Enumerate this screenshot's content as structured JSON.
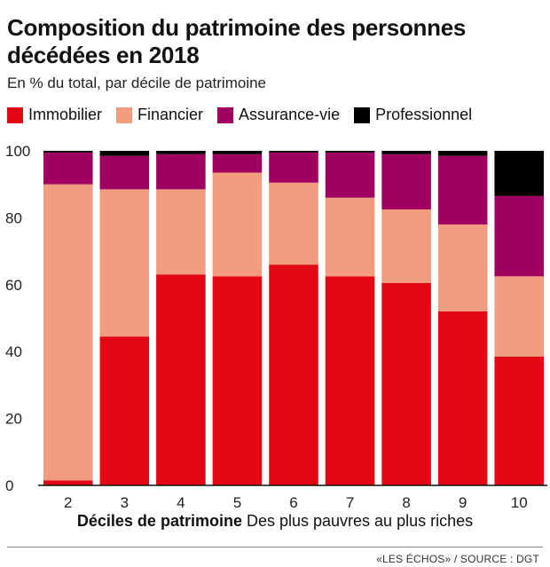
{
  "title": "Composition du patrimoine des personnes décédées en 2018",
  "subtitle": "En % du total, par décile de patrimoine",
  "source": "«LES ÉCHOS» / SOURCE : DGT",
  "xcaption": {
    "bold": "Déciles de patrimoine",
    "rest": " Des plus pauvres au plus riches"
  },
  "chart_data": {
    "type": "bar",
    "stacked": true,
    "categories": [
      "2",
      "3",
      "4",
      "5",
      "6",
      "7",
      "8",
      "9",
      "10"
    ],
    "ylim": [
      0,
      100
    ],
    "yticks": [
      0,
      20,
      40,
      60,
      80,
      100
    ],
    "series": [
      {
        "name": "Immobilier",
        "color": "#e30613",
        "values": [
          1.5,
          44.5,
          63,
          62.5,
          66,
          62.5,
          60.5,
          52,
          38.5
        ]
      },
      {
        "name": "Financier",
        "color": "#f19c7f",
        "values": [
          88.5,
          44,
          25.5,
          31,
          24.5,
          23.5,
          22,
          26,
          24
        ]
      },
      {
        "name": "Assurance-vie",
        "color": "#a0005f",
        "values": [
          9.5,
          10,
          10.5,
          5.5,
          9,
          13.5,
          16.5,
          20.5,
          24
        ]
      },
      {
        "name": "Professionnel",
        "color": "#000000",
        "values": [
          0.5,
          1.5,
          1,
          1,
          0.5,
          0.5,
          1,
          1.5,
          13.5
        ]
      }
    ],
    "grid": false,
    "legend_position": "top-left"
  }
}
